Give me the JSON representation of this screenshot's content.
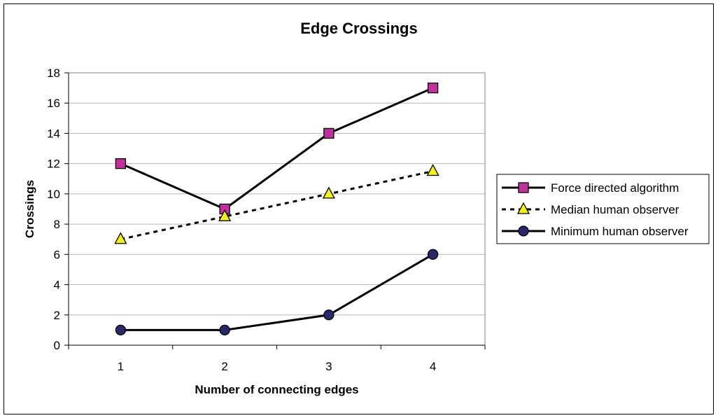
{
  "chart_data": {
    "type": "line",
    "title": "Edge Crossings",
    "xlabel": "Number of connecting edges",
    "ylabel": "Crossings",
    "categories": [
      "1",
      "2",
      "3",
      "4"
    ],
    "ylim": [
      0,
      18
    ],
    "yticks": [
      0,
      2,
      4,
      6,
      8,
      10,
      12,
      14,
      16,
      18
    ],
    "grid": true,
    "legend_position": "right",
    "series": [
      {
        "name": "Force directed algorithm",
        "values": [
          12,
          9,
          14,
          17
        ],
        "marker": "square",
        "line": "solid",
        "color": "#c0319e"
      },
      {
        "name": "Median human observer",
        "values": [
          7,
          8.5,
          10,
          11.5
        ],
        "marker": "triangle",
        "line": "dashed",
        "color": "#f5ef1a"
      },
      {
        "name": "Minimum human observer",
        "values": [
          1,
          1,
          2,
          6
        ],
        "marker": "circle",
        "line": "solid",
        "color": "#27296b"
      }
    ]
  }
}
